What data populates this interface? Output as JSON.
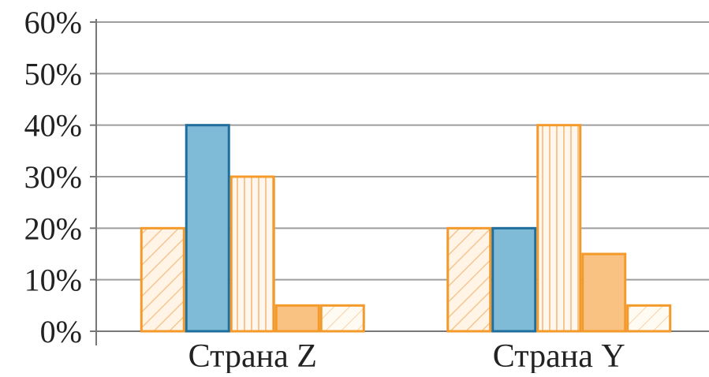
{
  "chart_data": {
    "type": "bar",
    "title": "",
    "xlabel": "",
    "ylabel": "",
    "categories": [
      "Страна Z",
      "Страна Y"
    ],
    "ylim": [
      0,
      60
    ],
    "yticks": [
      "0%",
      "10%",
      "20%",
      "30%",
      "40%",
      "50%",
      "60%"
    ],
    "grid": true,
    "legend": "none",
    "series": [
      {
        "values": [
          20,
          20
        ],
        "fill": "#fff4e6",
        "stroke": "#f39a2a",
        "pattern": "diagonal"
      },
      {
        "values": [
          40,
          20
        ],
        "fill": "#7fbad6",
        "stroke": "#1f6e9c",
        "pattern": "solid"
      },
      {
        "values": [
          30,
          40
        ],
        "fill": "#fff7ee",
        "stroke": "#f39a2a",
        "pattern": "vertical"
      },
      {
        "values": [
          5,
          15
        ],
        "fill": "#f9c283",
        "stroke": "#f39a2a",
        "pattern": "solid"
      },
      {
        "values": [
          5,
          5
        ],
        "fill": "#fffaf2",
        "stroke": "#f39a2a",
        "pattern": "diagonal-light"
      }
    ]
  }
}
